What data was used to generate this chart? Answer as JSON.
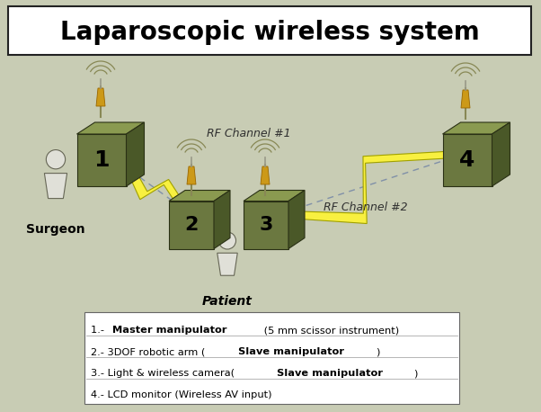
{
  "title": "Laparoscopic wireless system",
  "bg_color": "#c8ccb4",
  "box_face": "#6b7840",
  "box_top": "#8a9a50",
  "box_side": "#4a5828",
  "box_edge": "#2a3015",
  "antenna_body": "#cc9918",
  "antenna_dark": "#996600",
  "wave_color": "#888855",
  "lightning_fill": "#f8f040",
  "lightning_edge": "#a0a000",
  "line_color": "#8090a8",
  "person_color": "#e0e0d8",
  "person_edge": "#666655",
  "rf1_label": "RF Channel #1",
  "rf2_label": "RF Channel #2",
  "surgeon_label": "Surgeon",
  "patient_label": "Patient",
  "title_fontsize": 20,
  "label_fontsize": 14
}
